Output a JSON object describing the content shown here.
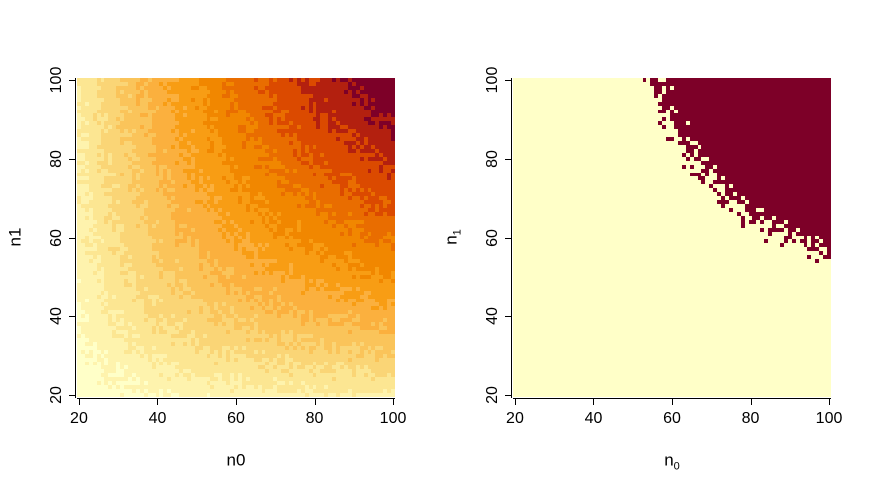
{
  "page": {
    "background": "#ffffff",
    "text_color": "#000000"
  },
  "chart_data": [
    {
      "type": "heatmap",
      "title": "",
      "xlabel": "n0",
      "ylabel": "n1",
      "xlabel_base": "n0",
      "xlabel_sub": "",
      "ylabel_base": "n1",
      "ylabel_sub": "",
      "x_ticks": [
        20,
        40,
        60,
        80,
        100
      ],
      "y_ticks": [
        20,
        40,
        60,
        80,
        100
      ],
      "x_range": [
        19.5,
        100.5
      ],
      "y_range": [
        19.5,
        100.5
      ],
      "grid_cells_x": 81,
      "grid_cells_y": 81,
      "grid_step": 1,
      "legend": "none",
      "grid": false,
      "palette": [
        "#FFFFC8",
        "#FEF3AD",
        "#FCE692",
        "#FAD576",
        "#FAC45A",
        "#FBB03E",
        "#F89D14",
        "#F18700",
        "#E96D00",
        "#DB4A00",
        "#B3200F",
        "#7D0028"
      ],
      "z_model": "z = 2*n0*n1/(n0+n1) (effective sample size surface, increasing toward top-right; hyperbolic iso-bands around bottom-left corner) plus per-cell simulation noise",
      "z_range": [
        20,
        100
      ],
      "z_levels": 12,
      "noise_amplitude": 3,
      "corner_values": {
        "bottom_left_z": 20,
        "top_right_z": 100,
        "off_diagonal_z": 33.3
      }
    },
    {
      "type": "heatmap",
      "title": "",
      "xlabel": "n₀",
      "ylabel": "n₁",
      "xlabel_base": "n",
      "xlabel_sub": "0",
      "ylabel_base": "n",
      "ylabel_sub": "1",
      "x_ticks": [
        20,
        40,
        60,
        80,
        100
      ],
      "y_ticks": [
        20,
        40,
        60,
        80,
        100
      ],
      "x_range": [
        19.5,
        100.5
      ],
      "y_range": [
        19.5,
        100.5
      ],
      "grid_cells_x": 81,
      "grid_cells_y": 81,
      "grid_step": 1,
      "legend": "none",
      "grid": false,
      "palette": [
        "#FFFFC8",
        "#7D0028"
      ],
      "z_model": "binary: dark where 2*n0*n1/(n0+n1) >= threshold (top-right region above hyperbolic boundary), cream elsewhere, jagged noisy boundary",
      "threshold": 72,
      "noise_amplitude": 3,
      "boundary_points": [
        {
          "n0": 58,
          "n1": 100
        },
        {
          "n0": 70,
          "n1": 74
        },
        {
          "n0": 100,
          "n1": 55.5
        }
      ]
    }
  ]
}
